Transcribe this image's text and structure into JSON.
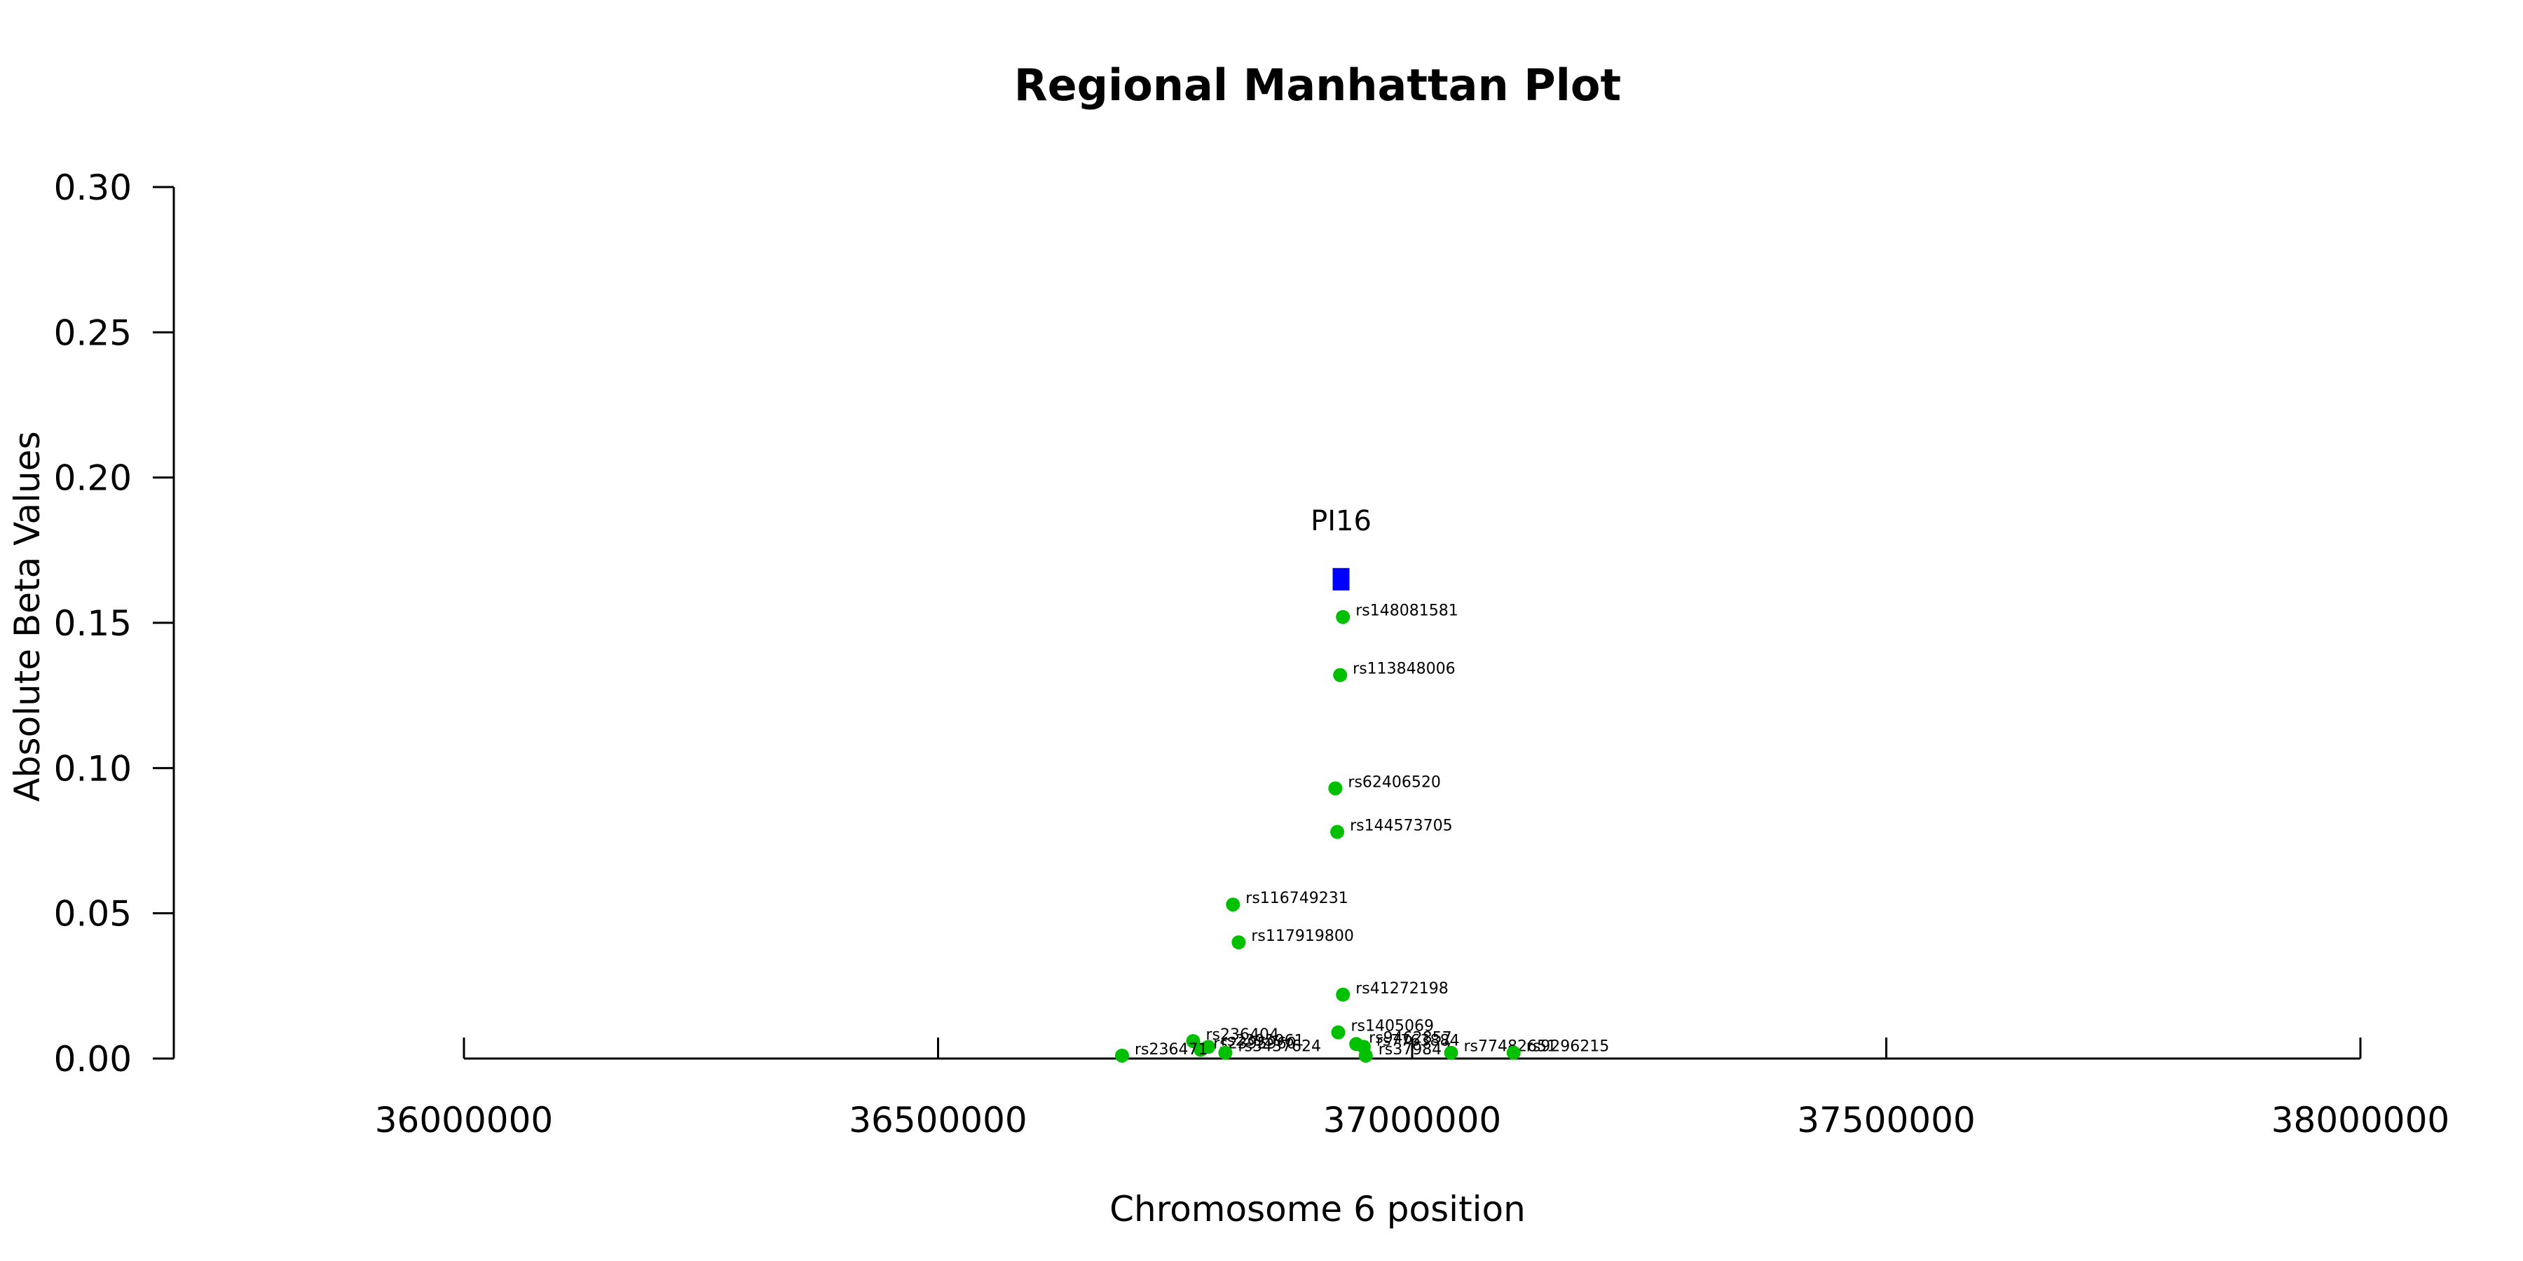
{
  "chart_data": {
    "type": "scatter",
    "title": "Regional Manhattan Plot",
    "xlabel": "Chromosome 6 position",
    "ylabel": "Absolute Beta Values",
    "xlim": [
      36000000,
      38000000
    ],
    "ylim": [
      0,
      0.3
    ],
    "x_ticks": [
      "36000000",
      "36500000",
      "37000000",
      "37500000",
      "38000000"
    ],
    "y_ticks": [
      "0.00",
      "0.05",
      "0.10",
      "0.15",
      "0.20",
      "0.25",
      "0.30"
    ],
    "grid": false,
    "colors": {
      "snp": "#00C000",
      "gene": "#0000FF"
    },
    "gene": {
      "name": "PI16",
      "x": 36925000,
      "y": 0.165
    },
    "points": [
      {
        "label": "rs148081581",
        "x": 36927000,
        "y": 0.152
      },
      {
        "label": "rs113848006",
        "x": 36924000,
        "y": 0.132
      },
      {
        "label": "rs62406520",
        "x": 36919000,
        "y": 0.093
      },
      {
        "label": "rs144573705",
        "x": 36921000,
        "y": 0.078
      },
      {
        "label": "rs116749231",
        "x": 36811000,
        "y": 0.053
      },
      {
        "label": "rs117919800",
        "x": 36817000,
        "y": 0.04
      },
      {
        "label": "rs41272198",
        "x": 36927000,
        "y": 0.022
      },
      {
        "label": "rs1405069",
        "x": 36922000,
        "y": 0.009
      },
      {
        "label": "rs236404",
        "x": 36769000,
        "y": 0.006
      },
      {
        "label": "rs2395961",
        "x": 36785000,
        "y": 0.004
      },
      {
        "label": "rs2395960",
        "x": 36777000,
        "y": 0.003
      },
      {
        "label": "rs9462857",
        "x": 36941000,
        "y": 0.005
      },
      {
        "label": "rs7763884",
        "x": 36949000,
        "y": 0.004
      },
      {
        "label": "rs3437624",
        "x": 36803000,
        "y": 0.002
      },
      {
        "label": "rs379847",
        "x": 36951000,
        "y": 0.001
      },
      {
        "label": "rs236471",
        "x": 36694000,
        "y": 0.001
      },
      {
        "label": "rs77482651",
        "x": 37041000,
        "y": 0.002
      },
      {
        "label": "rs9296215",
        "x": 37107000,
        "y": 0.002
      }
    ]
  }
}
